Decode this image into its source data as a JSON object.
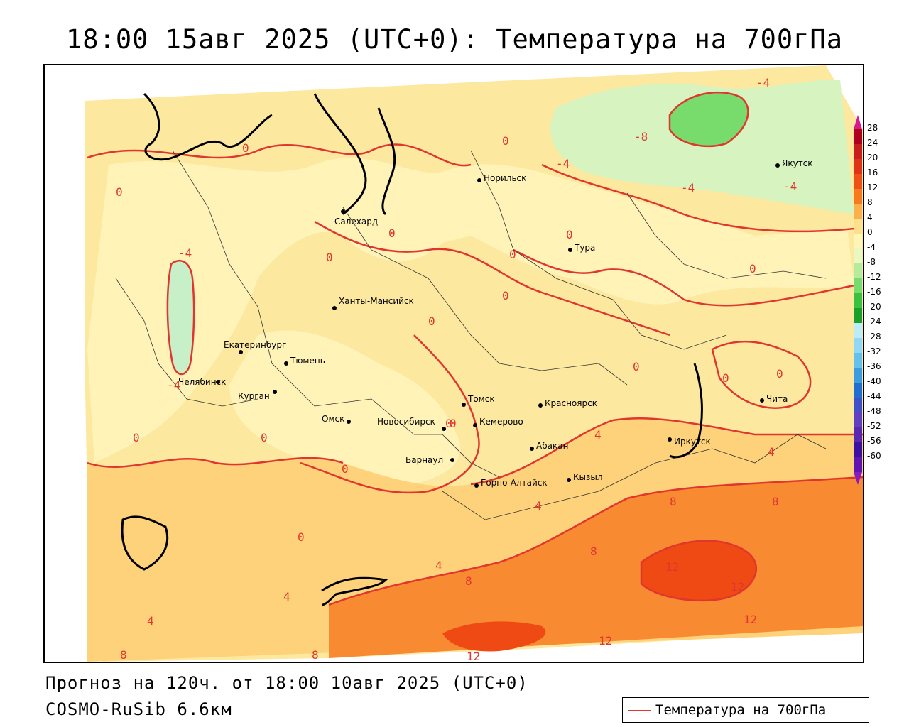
{
  "title": "18:00 15авг 2025 (UTC+0): Температура на 700гПа",
  "forecast_line": "Прогноз на 120ч. от 18:00 10авг 2025 (UTC+0)",
  "model_line": "COSMO-RuSib 6.6км",
  "legend": {
    "label": "Температура на 700гПа",
    "color": "#e0362f"
  },
  "colorbar": {
    "ticks": [
      "28",
      "24",
      "20",
      "16",
      "12",
      "8",
      "4",
      "0",
      "-4",
      "-8",
      "-12",
      "-16",
      "-20",
      "-24",
      "-28",
      "-32",
      "-36",
      "-40",
      "-44",
      "-48",
      "-52",
      "-56",
      "-60"
    ],
    "colors": [
      "#b0001e",
      "#c81e1e",
      "#e03214",
      "#f05014",
      "#f87a1e",
      "#fcb04a",
      "#fde08c",
      "#fff5b4",
      "#e8f8c0",
      "#b4ec9c",
      "#78dc6c",
      "#3cc040",
      "#19a028",
      "#bcecf8",
      "#90d8f4",
      "#64c0ec",
      "#3c9ce0",
      "#2070d0",
      "#4050c8",
      "#6040c0",
      "#5a28b0",
      "#3c10a0",
      "#6014b0"
    ]
  },
  "cities": [
    {
      "name": "Салехард"
    },
    {
      "name": "Норильск"
    },
    {
      "name": "Тура"
    },
    {
      "name": "Якутск"
    },
    {
      "name": "Ханты-Мансийск"
    },
    {
      "name": "Екатеринбург"
    },
    {
      "name": "Тюмень"
    },
    {
      "name": "Челябинск"
    },
    {
      "name": "Курган"
    },
    {
      "name": "Омск"
    },
    {
      "name": "Новосибирск"
    },
    {
      "name": "Томск"
    },
    {
      "name": "Кемерово"
    },
    {
      "name": "Красноярск"
    },
    {
      "name": "Барнаул"
    },
    {
      "name": "Абакан"
    },
    {
      "name": "Горно-Алтайск"
    },
    {
      "name": "Кызыл"
    },
    {
      "name": "Иркутск"
    },
    {
      "name": "Чита"
    }
  ],
  "contour_labels": [
    "0",
    "0",
    "0",
    "0",
    "0",
    "0",
    "0",
    "0",
    "0",
    "0",
    "0",
    "0",
    "0",
    "0",
    "0",
    "0",
    "0",
    "0",
    "0",
    "-4",
    "-4",
    "-4",
    "-4",
    "-4",
    "-4",
    "-8",
    "4",
    "4",
    "4",
    "4",
    "4",
    "4",
    "8",
    "8",
    "8",
    "8",
    "8",
    "8",
    "12",
    "12",
    "12",
    "12",
    "12"
  ]
}
